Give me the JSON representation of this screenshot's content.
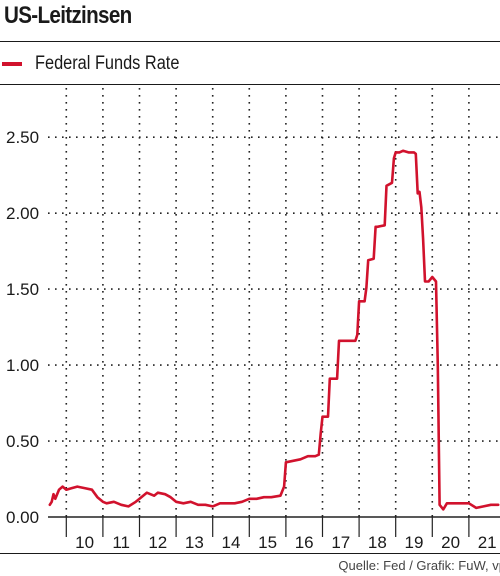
{
  "header": {
    "title": "US-Leitzinsen"
  },
  "footer": {
    "source": "Quelle: Fed / Grafik: FuW, vp"
  },
  "colors": {
    "series": "#d1122d",
    "grid": "#222222",
    "text": "#1a1a1a"
  },
  "chart_data": {
    "type": "line",
    "title": "US-Leitzinsen",
    "xlabel": "",
    "ylabel": "",
    "xlim": [
      2009.5,
      2021.85
    ],
    "ylim": [
      0,
      2.85
    ],
    "x_tick_labels": [
      "10",
      "11",
      "12",
      "13",
      "14",
      "15",
      "16",
      "17",
      "18",
      "19",
      "20",
      "21"
    ],
    "y_tick_labels": [
      "0.00",
      "0.50",
      "1.00",
      "1.50",
      "2.00",
      "2.50"
    ],
    "grid": "dotted, both axes",
    "legend": "top-left",
    "series": [
      {
        "name": "Federal Funds Rate",
        "color": "#d1122d",
        "x": [
          2009.55,
          2009.6,
          2009.65,
          2009.7,
          2009.8,
          2009.9,
          2010.0,
          2010.15,
          2010.3,
          2010.5,
          2010.7,
          2010.85,
          2011.0,
          2011.1,
          2011.3,
          2011.5,
          2011.7,
          2011.9,
          2012.0,
          2012.2,
          2012.4,
          2012.5,
          2012.7,
          2012.85,
          2013.0,
          2013.2,
          2013.4,
          2013.6,
          2013.8,
          2014.0,
          2014.2,
          2014.4,
          2014.6,
          2014.8,
          2015.0,
          2015.2,
          2015.4,
          2015.6,
          2015.85,
          2015.95,
          2016.0,
          2016.2,
          2016.4,
          2016.6,
          2016.8,
          2016.9,
          2016.95,
          2017.0,
          2017.15,
          2017.2,
          2017.25,
          2017.4,
          2017.45,
          2017.5,
          2017.7,
          2017.9,
          2017.95,
          2018.0,
          2018.15,
          2018.2,
          2018.25,
          2018.4,
          2018.45,
          2018.5,
          2018.7,
          2018.75,
          2018.9,
          2018.95,
          2019.0,
          2019.1,
          2019.2,
          2019.35,
          2019.5,
          2019.55,
          2019.6,
          2019.65,
          2019.7,
          2019.75,
          2019.8,
          2019.9,
          2020.0,
          2020.1,
          2020.15,
          2020.2,
          2020.3,
          2020.4,
          2020.6,
          2020.8,
          2021.0,
          2021.2,
          2021.4,
          2021.6,
          2021.8
        ],
        "y": [
          0.08,
          0.1,
          0.15,
          0.12,
          0.18,
          0.2,
          0.18,
          0.19,
          0.2,
          0.19,
          0.18,
          0.13,
          0.1,
          0.09,
          0.1,
          0.08,
          0.07,
          0.1,
          0.12,
          0.16,
          0.14,
          0.16,
          0.15,
          0.13,
          0.1,
          0.09,
          0.1,
          0.08,
          0.08,
          0.07,
          0.09,
          0.09,
          0.09,
          0.1,
          0.12,
          0.12,
          0.13,
          0.13,
          0.14,
          0.2,
          0.36,
          0.37,
          0.38,
          0.4,
          0.4,
          0.41,
          0.55,
          0.66,
          0.66,
          0.91,
          0.91,
          0.91,
          1.16,
          1.16,
          1.16,
          1.16,
          1.2,
          1.42,
          1.42,
          1.51,
          1.69,
          1.7,
          1.91,
          1.91,
          1.92,
          2.18,
          2.2,
          2.36,
          2.4,
          2.4,
          2.41,
          2.4,
          2.4,
          2.39,
          2.13,
          2.14,
          2.04,
          1.83,
          1.55,
          1.55,
          1.58,
          1.55,
          1.0,
          0.08,
          0.05,
          0.09,
          0.09,
          0.09,
          0.09,
          0.06,
          0.07,
          0.08,
          0.08
        ]
      }
    ]
  }
}
